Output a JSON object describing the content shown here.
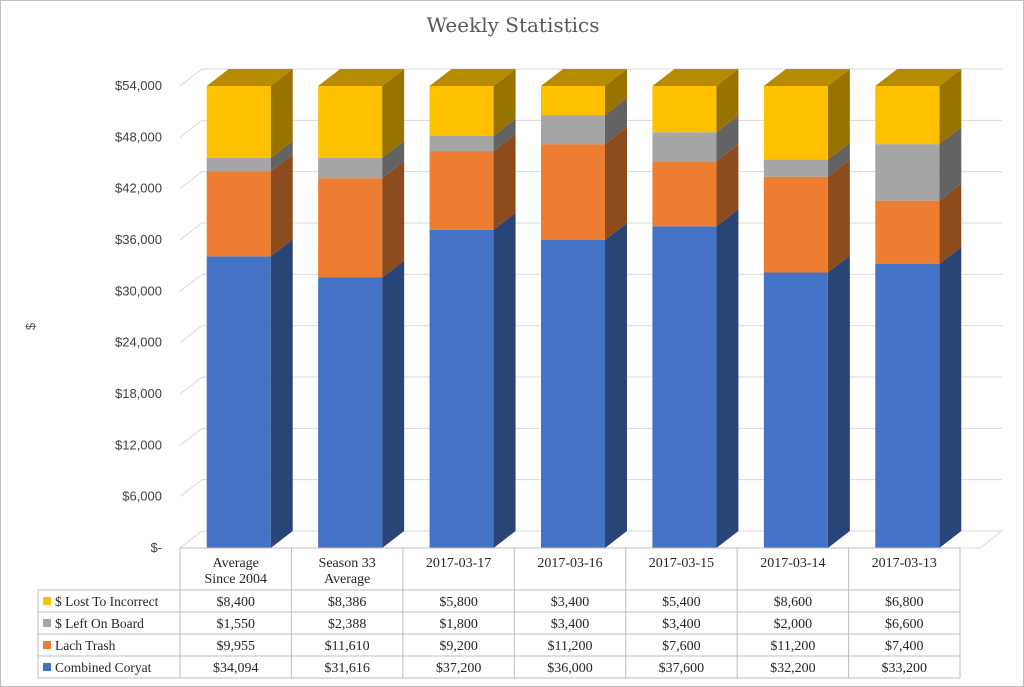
{
  "chart_data": {
    "type": "bar",
    "stacked": true,
    "three_d": true,
    "title": "Weekly Statistics",
    "ylabel": "$",
    "xlabel": "",
    "ylim": [
      0,
      54000
    ],
    "y_ticks": [
      "$-",
      "$6,000",
      "$12,000",
      "$18,000",
      "$24,000",
      "$30,000",
      "$36,000",
      "$42,000",
      "$48,000",
      "$54,000"
    ],
    "y_tick_values": [
      0,
      6000,
      12000,
      18000,
      24000,
      30000,
      36000,
      42000,
      48000,
      54000
    ],
    "grid": true,
    "legend_placement": "data-table-left",
    "categories": [
      [
        "Average",
        "Since 2004"
      ],
      [
        "Season 33",
        "Average"
      ],
      [
        "2017-03-17"
      ],
      [
        "2017-03-16"
      ],
      [
        "2017-03-15"
      ],
      [
        "2017-03-14"
      ],
      [
        "2017-03-13"
      ]
    ],
    "series": [
      {
        "name": "Combined Coryat",
        "color": "#4472c4",
        "values": [
          34094,
          31616,
          37200,
          36000,
          37600,
          32200,
          33200
        ],
        "labels": [
          "$34,094",
          "$31,616",
          "$37,200",
          "$36,000",
          "$37,600",
          "$32,200",
          "$33,200"
        ]
      },
      {
        "name": "Lach Trash",
        "color": "#ed7d31",
        "values": [
          9955,
          11610,
          9200,
          11200,
          7600,
          11200,
          7400
        ],
        "labels": [
          "$9,955",
          "$11,610",
          "$9,200",
          "$11,200",
          "$7,600",
          "$11,200",
          "$7,400"
        ]
      },
      {
        "name": "$ Left On Board",
        "color": "#a5a5a5",
        "values": [
          1550,
          2388,
          1800,
          3400,
          3400,
          2000,
          6600
        ],
        "labels": [
          "$1,550",
          "$2,388",
          "$1,800",
          "$3,400",
          "$3,400",
          "$2,000",
          "$6,600"
        ]
      },
      {
        "name": "$ Lost To Incorrect",
        "color": "#ffc000",
        "values": [
          8400,
          8386,
          5800,
          3400,
          5400,
          8600,
          6800
        ],
        "labels": [
          "$8,400",
          "$8,386",
          "$5,800",
          "$3,400",
          "$5,400",
          "$8,600",
          "$6,800"
        ]
      }
    ],
    "table_row_order": [
      "$ Lost To Incorrect",
      "$ Left On Board",
      "Lach Trash",
      "Combined Coryat"
    ]
  }
}
